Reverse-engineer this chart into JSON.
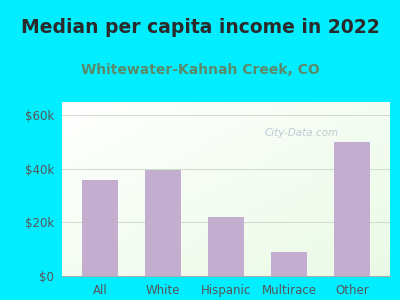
{
  "title": "Median per capita income in 2022",
  "subtitle": "Whitewater-Kahnah Creek, CO",
  "categories": [
    "All",
    "White",
    "Hispanic",
    "Multirace",
    "Other"
  ],
  "values": [
    36000,
    39500,
    22000,
    9000,
    50000
  ],
  "bar_color": "#c4aed0",
  "title_fontsize": 13.5,
  "subtitle_fontsize": 10,
  "title_color": "#2a2a2a",
  "subtitle_color": "#5a8a6a",
  "background_color": "#00eeff",
  "ylim": [
    0,
    65000
  ],
  "yticks": [
    0,
    20000,
    40000,
    60000
  ],
  "ytick_labels": [
    "$0",
    "$20k",
    "$40k",
    "$60k"
  ],
  "watermark": "City-Data.com",
  "watermark_color": "#aabbcc",
  "grid_color": "#ccddcc",
  "axis_color": "#aaaaaa",
  "tick_color": "#555555"
}
